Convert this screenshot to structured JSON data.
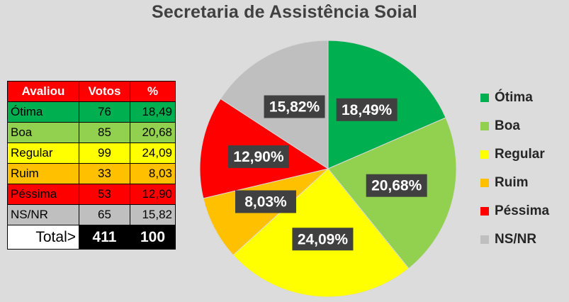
{
  "title": "Secretaria de Assistência Soial",
  "table": {
    "headers": [
      "Avaliou",
      "Votos",
      "%"
    ],
    "rows": [
      {
        "label": "Ótima",
        "votes": "76",
        "pct": "18,49",
        "color": "#00b050"
      },
      {
        "label": "Boa",
        "votes": "85",
        "pct": "20,68",
        "color": "#92d050"
      },
      {
        "label": "Regular",
        "votes": "99",
        "pct": "24,09",
        "color": "#ffff00"
      },
      {
        "label": "Ruim",
        "votes": "33",
        "pct": "8,03",
        "color": "#ffc000"
      },
      {
        "label": "Péssima",
        "votes": "53",
        "pct": "12,90",
        "color": "#ff0000"
      },
      {
        "label": "NS/NR",
        "votes": "65",
        "pct": "15,82",
        "color": "#bfbfbf"
      }
    ],
    "total_label": "Total>",
    "total_votes": "411",
    "total_pct": "100"
  },
  "chart_data": {
    "type": "pie",
    "title": "Secretaria de Assistência Soial",
    "categories": [
      "Ótima",
      "Boa",
      "Regular",
      "Ruim",
      "Péssima",
      "NS/NR"
    ],
    "values": [
      18.49,
      20.68,
      24.09,
      8.03,
      12.9,
      15.82
    ],
    "data_labels": [
      "18,49%",
      "20,68%",
      "24,09%",
      "8,03%",
      "12,90%",
      "15,82%"
    ],
    "colors": [
      "#00b050",
      "#92d050",
      "#ffff00",
      "#ffc000",
      "#ff0000",
      "#bfbfbf"
    ],
    "legend_position": "right"
  }
}
